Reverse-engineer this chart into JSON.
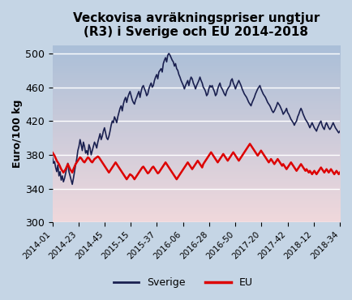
{
  "title": "Veckovisa avräkningspriser ungtjur\n(R3) i Sverige och EU 2014-2018",
  "ylabel": "Euro/100 kg",
  "ylim": [
    300,
    510
  ],
  "yticks": [
    300,
    340,
    380,
    420,
    460,
    500
  ],
  "bg_outer": "#c5d5e5",
  "bg_plot_top": "#aabfd8",
  "bg_plot_bottom": "#f0d8dc",
  "sweden_color": "#1a2050",
  "eu_color": "#dd0000",
  "legend_labels": [
    "Sverige",
    "EU"
  ],
  "xtick_labels": [
    "2014-01",
    "2014-23",
    "2014-45",
    "2015-15",
    "2015-37",
    "2016-06",
    "2016-28",
    "2016-50",
    "2017-20",
    "2017-42",
    "2018-12",
    "2018-34"
  ],
  "sweden_data": [
    378,
    370,
    372,
    365,
    360,
    368,
    355,
    360,
    350,
    355,
    348,
    352,
    358,
    365,
    370,
    360,
    355,
    350,
    345,
    352,
    360,
    368,
    375,
    385,
    390,
    398,
    392,
    385,
    395,
    390,
    382,
    385,
    380,
    392,
    388,
    380,
    385,
    390,
    395,
    392,
    388,
    395,
    400,
    405,
    398,
    402,
    408,
    412,
    406,
    400,
    398,
    402,
    408,
    415,
    420,
    418,
    425,
    422,
    418,
    425,
    430,
    435,
    438,
    432,
    440,
    445,
    448,
    442,
    448,
    452,
    455,
    450,
    445,
    442,
    440,
    445,
    448,
    452,
    455,
    448,
    455,
    460,
    462,
    458,
    455,
    450,
    452,
    458,
    462,
    465,
    460,
    462,
    468,
    472,
    475,
    470,
    478,
    480,
    482,
    478,
    488,
    492,
    495,
    490,
    498,
    500,
    498,
    495,
    492,
    490,
    485,
    488,
    482,
    480,
    475,
    472,
    468,
    465,
    462,
    458,
    462,
    465,
    468,
    462,
    468,
    472,
    470,
    465,
    462,
    458,
    462,
    465,
    468,
    472,
    468,
    465,
    460,
    458,
    455,
    450,
    452,
    458,
    462,
    460,
    462,
    458,
    455,
    450,
    452,
    458,
    462,
    465,
    460,
    458,
    455,
    452,
    450,
    455,
    458,
    460,
    462,
    468,
    470,
    465,
    462,
    458,
    462,
    465,
    468,
    465,
    462,
    458,
    455,
    452,
    450,
    448,
    445,
    442,
    440,
    438,
    442,
    445,
    448,
    452,
    455,
    458,
    460,
    462,
    458,
    455,
    452,
    450,
    448,
    445,
    442,
    440,
    438,
    435,
    432,
    430,
    432,
    435,
    438,
    442,
    440,
    438,
    435,
    432,
    428,
    430,
    432,
    435,
    430,
    428,
    425,
    422,
    420,
    418,
    415,
    418,
    420,
    425,
    428,
    432,
    435,
    432,
    428,
    425,
    422,
    420,
    418,
    415,
    412,
    415,
    418,
    415,
    412,
    410,
    408,
    412,
    415,
    418,
    420,
    415,
    412,
    410,
    415,
    418,
    415,
    412,
    410,
    412,
    415,
    418,
    415,
    412,
    410,
    408,
    406,
    408
  ],
  "eu_data": [
    383,
    381,
    379,
    376,
    373,
    371,
    369,
    366,
    363,
    361,
    359,
    361,
    363,
    366,
    369,
    366,
    363,
    361,
    359,
    363,
    366,
    369,
    371,
    373,
    375,
    377,
    376,
    374,
    372,
    371,
    373,
    375,
    377,
    376,
    374,
    372,
    371,
    373,
    375,
    376,
    377,
    378,
    377,
    375,
    373,
    371,
    369,
    367,
    365,
    363,
    361,
    359,
    361,
    363,
    365,
    367,
    369,
    371,
    369,
    367,
    365,
    363,
    361,
    359,
    357,
    355,
    353,
    351,
    353,
    355,
    357,
    356,
    355,
    353,
    351,
    353,
    355,
    357,
    359,
    361,
    363,
    365,
    366,
    364,
    362,
    360,
    358,
    359,
    361,
    363,
    365,
    366,
    364,
    362,
    360,
    358,
    359,
    361,
    363,
    365,
    367,
    369,
    371,
    369,
    367,
    365,
    363,
    361,
    359,
    357,
    355,
    353,
    351,
    353,
    355,
    357,
    359,
    361,
    363,
    365,
    367,
    369,
    371,
    369,
    367,
    365,
    363,
    365,
    367,
    369,
    371,
    373,
    371,
    369,
    367,
    365,
    369,
    371,
    373,
    375,
    377,
    379,
    381,
    383,
    381,
    379,
    377,
    375,
    373,
    371,
    373,
    375,
    377,
    379,
    381,
    379,
    377,
    375,
    373,
    375,
    377,
    379,
    381,
    383,
    381,
    379,
    377,
    375,
    373,
    375,
    377,
    379,
    381,
    383,
    385,
    387,
    389,
    391,
    393,
    391,
    389,
    387,
    385,
    383,
    381,
    379,
    381,
    383,
    385,
    383,
    381,
    379,
    377,
    375,
    373,
    371,
    373,
    375,
    373,
    371,
    369,
    371,
    373,
    375,
    373,
    371,
    369,
    367,
    369,
    367,
    365,
    363,
    365,
    367,
    369,
    371,
    369,
    367,
    365,
    363,
    361,
    363,
    365,
    367,
    369,
    367,
    365,
    363,
    361,
    363,
    361,
    359,
    361,
    359,
    357,
    359,
    361,
    359,
    357,
    359,
    361,
    363,
    365,
    363,
    361,
    359,
    361,
    363,
    361,
    359,
    361,
    363,
    361,
    359,
    357,
    359,
    361,
    359,
    357,
    359
  ]
}
